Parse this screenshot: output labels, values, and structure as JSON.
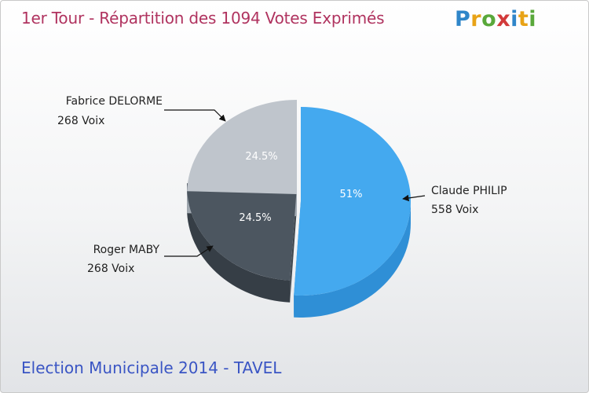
{
  "header": {
    "title": "1er Tour - Répartition des 1094 Votes Exprimés",
    "logo_text": "Proxiti",
    "logo_colors": [
      "#2f86c9",
      "#e8a317",
      "#59a83a",
      "#d23a3a",
      "#2f86c9",
      "#e8a317",
      "#59a83a"
    ]
  },
  "footer": {
    "subtitle": "Election Municipale 2014 - TAVEL"
  },
  "chart_data": {
    "type": "pie",
    "title": "1er Tour - Répartition des 1094 Votes Exprimés",
    "total_votes": 1094,
    "slices": [
      {
        "name": "Claude PHILIP",
        "votes_label": "558 Voix",
        "votes": 558,
        "percent_label": "51%",
        "percent": 51,
        "color": "#44a9ef",
        "side_color": "#2f8fd6"
      },
      {
        "name": "Roger MABY",
        "votes_label": "268 Voix",
        "votes": 268,
        "percent_label": "24.5%",
        "percent": 24.5,
        "color": "#4c5660",
        "side_color": "#363e46"
      },
      {
        "name": "Fabrice DELORME",
        "votes_label": "268 Voix",
        "votes": 268,
        "percent_label": "24.5%",
        "percent": 24.5,
        "color": "#bfc5cc",
        "side_color": "#a8afb7"
      }
    ]
  }
}
